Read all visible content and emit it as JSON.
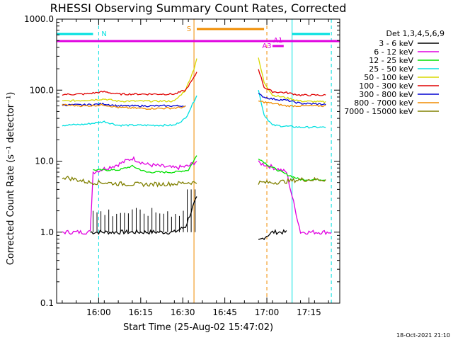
{
  "chart_data": {
    "type": "line",
    "title": "RHESSI Observing Summary Count Rates, Corrected",
    "xlabel": "Start Time (25-Aug-02 15:47:02)",
    "ylabel": "Corrected Count Rate (s⁻¹ detector⁻¹)",
    "footer": "18-Oct-2021 21:10",
    "y_scale": "log",
    "ylim": [
      0.1,
      1000.0
    ],
    "y_ticks": [
      {
        "v": 1000.0,
        "label": "1000.0"
      },
      {
        "v": 100.0,
        "label": "100.0"
      },
      {
        "v": 10.0,
        "label": "10.0"
      },
      {
        "v": 1.0,
        "label": "1.0"
      },
      {
        "v": 0.1,
        "label": "0.1"
      }
    ],
    "x_range_min": [
      -2,
      58
    ],
    "x_ticks": [
      {
        "m": 13,
        "label": "16:00"
      },
      {
        "m": 28,
        "label": "16:15"
      },
      {
        "m": 43,
        "label": "16:30"
      },
      {
        "m": 58,
        "label": "16:45"
      },
      {
        "m": 73,
        "label": "17:00"
      },
      {
        "m": 88,
        "label": "17:15"
      }
    ],
    "legend_title": "Det 1,3,4,5,6,9",
    "gap": [
      49,
      70
    ],
    "series": [
      {
        "name": "3 - 6 keV",
        "color": "#000000",
        "pts": [
          [
            10,
            1.0
          ],
          [
            20,
            1.0
          ],
          [
            30,
            1.0
          ],
          [
            40,
            1.0
          ],
          [
            44,
            1.2
          ],
          [
            47,
            2.5
          ],
          [
            48,
            3.0
          ],
          [
            70,
            0.75
          ],
          [
            75,
            1.0
          ],
          [
            80,
            1.0
          ]
        ]
      },
      {
        "name": "6 - 12 keV",
        "color": "#e000e0",
        "pts": [
          [
            0,
            1.0
          ],
          [
            10,
            1.0
          ],
          [
            11,
            7.0
          ],
          [
            20,
            9.0
          ],
          [
            25,
            11.0
          ],
          [
            30,
            9.0
          ],
          [
            35,
            8.5
          ],
          [
            40,
            8.0
          ],
          [
            45,
            8.5
          ],
          [
            48,
            10.0
          ],
          [
            70,
            9.5
          ],
          [
            74,
            8.5
          ],
          [
            80,
            7.0
          ],
          [
            85,
            1.0
          ],
          [
            96,
            1.0
          ]
        ]
      },
      {
        "name": "12 - 25 keV",
        "color": "#00e000",
        "pts": [
          [
            11,
            7.5
          ],
          [
            20,
            7.5
          ],
          [
            25,
            8.5
          ],
          [
            30,
            7.0
          ],
          [
            35,
            7.0
          ],
          [
            40,
            7.0
          ],
          [
            45,
            7.5
          ],
          [
            48,
            12.0
          ],
          [
            70,
            11.0
          ],
          [
            74,
            8.5
          ],
          [
            80,
            6.5
          ],
          [
            85,
            5.5
          ],
          [
            94,
            5.5
          ]
        ]
      },
      {
        "name": "25 - 50 keV",
        "color": "#00e0e0",
        "pts": [
          [
            0,
            32
          ],
          [
            8,
            33
          ],
          [
            15,
            36
          ],
          [
            20,
            32
          ],
          [
            30,
            32
          ],
          [
            40,
            32
          ],
          [
            44,
            40
          ],
          [
            47,
            70
          ],
          [
            48,
            85
          ],
          [
            70,
            100
          ],
          [
            72,
            45
          ],
          [
            75,
            32
          ],
          [
            85,
            30
          ],
          [
            94,
            30
          ]
        ]
      },
      {
        "name": "50 - 100 keV",
        "color": "#d8d800",
        "pts": [
          [
            0,
            70
          ],
          [
            8,
            72
          ],
          [
            15,
            75
          ],
          [
            20,
            70
          ],
          [
            30,
            70
          ],
          [
            40,
            70
          ],
          [
            44,
            100
          ],
          [
            47,
            200
          ],
          [
            48,
            280
          ],
          [
            70,
            280
          ],
          [
            72,
            130
          ],
          [
            75,
            85
          ],
          [
            80,
            78
          ],
          [
            85,
            70
          ],
          [
            94,
            68
          ]
        ]
      },
      {
        "name": "100 - 300 keV",
        "color": "#e00000",
        "pts": [
          [
            0,
            87
          ],
          [
            8,
            88
          ],
          [
            15,
            95
          ],
          [
            20,
            88
          ],
          [
            30,
            88
          ],
          [
            40,
            88
          ],
          [
            44,
            100
          ],
          [
            47,
            150
          ],
          [
            48,
            180
          ],
          [
            70,
            200
          ],
          [
            72,
            110
          ],
          [
            75,
            95
          ],
          [
            80,
            92
          ],
          [
            85,
            85
          ],
          [
            94,
            85
          ]
        ]
      },
      {
        "name": "300 - 800 keV",
        "color": "#0000d0",
        "pts": [
          [
            0,
            62
          ],
          [
            8,
            62
          ],
          [
            15,
            64
          ],
          [
            20,
            60
          ],
          [
            30,
            60
          ],
          [
            40,
            60
          ],
          [
            44,
            60
          ],
          [
            70,
            88
          ],
          [
            72,
            80
          ],
          [
            75,
            75
          ],
          [
            80,
            72
          ],
          [
            85,
            65
          ],
          [
            94,
            63
          ]
        ]
      },
      {
        "name": "800 - 7000 keV",
        "color": "#f08c00",
        "pts": [
          [
            0,
            62
          ],
          [
            8,
            60
          ],
          [
            15,
            62
          ],
          [
            20,
            57
          ],
          [
            30,
            55
          ],
          [
            40,
            56
          ],
          [
            44,
            58
          ],
          [
            70,
            70
          ],
          [
            72,
            68
          ],
          [
            75,
            65
          ],
          [
            80,
            60
          ],
          [
            85,
            60
          ],
          [
            94,
            60
          ]
        ]
      },
      {
        "name": "7000 - 15000 keV",
        "color": "#808000",
        "pts": [
          [
            0,
            6.0
          ],
          [
            5,
            5.5
          ],
          [
            10,
            5.0
          ],
          [
            15,
            5.0
          ],
          [
            20,
            4.8
          ],
          [
            30,
            4.7
          ],
          [
            40,
            4.8
          ],
          [
            45,
            5.0
          ],
          [
            48,
            5.0
          ],
          [
            70,
            5.0
          ],
          [
            75,
            5.0
          ],
          [
            80,
            5.2
          ],
          [
            85,
            5.5
          ],
          [
            94,
            5.5
          ]
        ]
      }
    ],
    "annotations": [
      {
        "label": "N",
        "color": "#00e0e0"
      },
      {
        "label": "S",
        "color": "#f08c00"
      },
      {
        "label": "A1",
        "color": "#e000e0"
      },
      {
        "label": "A3",
        "color": "#e000e0"
      }
    ]
  }
}
